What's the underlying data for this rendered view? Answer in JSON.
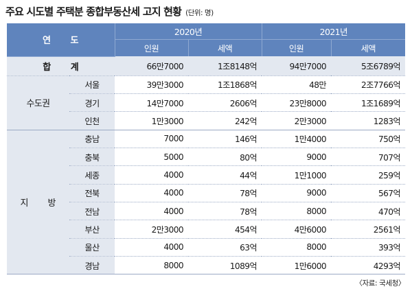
{
  "title": "주요 시도별 주택분 종합부동산세 고지 현황",
  "unit": "(단위: 명)",
  "header": {
    "label": "연 도",
    "years": [
      "2020년",
      "2021년"
    ],
    "subcols": [
      "인원",
      "세액",
      "인원",
      "세액"
    ]
  },
  "total": {
    "label": "합 계",
    "values": [
      "66만7000",
      "1조8148억",
      "94만7000",
      "5조6789억"
    ]
  },
  "groups": [
    {
      "name": "수도권",
      "rows": [
        {
          "city": "서울",
          "values": [
            "39만3000",
            "1조1868억",
            "48만",
            "2조7766억"
          ]
        },
        {
          "city": "경기",
          "values": [
            "14만7000",
            "2606억",
            "23만8000",
            "1조1689억"
          ]
        },
        {
          "city": "인천",
          "values": [
            "1만3000",
            "242억",
            "2만3000",
            "1283억"
          ]
        }
      ]
    },
    {
      "name": "지 방",
      "rows": [
        {
          "city": "충남",
          "values": [
            "7000",
            "146억",
            "1만4000",
            "750억"
          ]
        },
        {
          "city": "충북",
          "values": [
            "5000",
            "80억",
            "9000",
            "707억"
          ]
        },
        {
          "city": "세종",
          "values": [
            "4000",
            "44억",
            "1만1000",
            "259억"
          ]
        },
        {
          "city": "전북",
          "values": [
            "4000",
            "78억",
            "9000",
            "567억"
          ]
        },
        {
          "city": "전남",
          "values": [
            "4000",
            "78억",
            "8000",
            "470억"
          ]
        },
        {
          "city": "부산",
          "values": [
            "2만3000",
            "454억",
            "4만6000",
            "2561억"
          ]
        },
        {
          "city": "울산",
          "values": [
            "4000",
            "63억",
            "8000",
            "393억"
          ]
        },
        {
          "city": "경남",
          "values": [
            "8000",
            "1089억",
            "1만6000",
            "4293억"
          ]
        }
      ]
    }
  ],
  "source": "〈자료: 국세청〉",
  "colors": {
    "header_bg": "#5f84bd",
    "label_bg": "#e3e8f0",
    "rule": "#9aa9c4"
  }
}
